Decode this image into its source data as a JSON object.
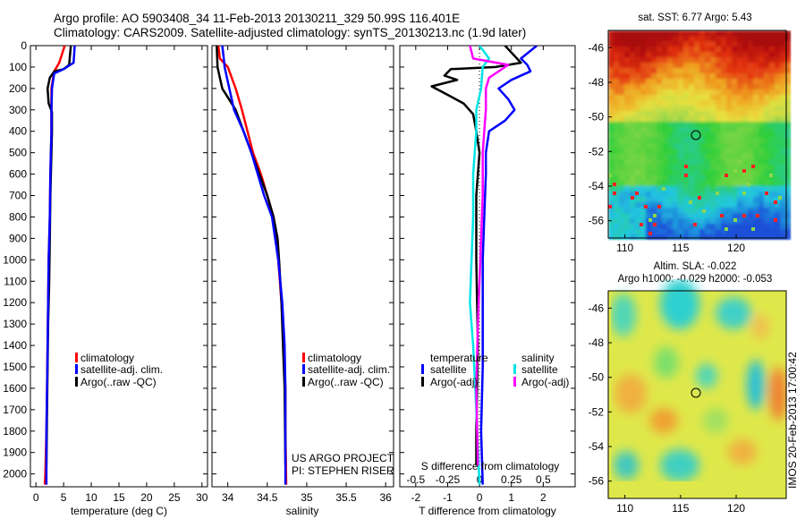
{
  "header": {
    "line1": "Argo profile: AO 5903408_34 11-Feb-2013 20130211_329 50.99S 116.401E",
    "line2": "Climatology: CARS2009. Satellite-adjusted climatology: synTS_20130213.nc (1.9d later)"
  },
  "side_label": "IMOS 20-Feb-2013 17:00:42",
  "project_text": [
    "US ARGO PROJECT",
    "PI: STEPHEN RISER"
  ],
  "colors": {
    "climatology": "#ff0000",
    "satellite": "#0000ff",
    "argo": "#000000",
    "sat_salinity": "#00e5e5",
    "argo_salinity": "#ff00ff"
  },
  "chart_data": [
    {
      "type": "line",
      "xlabel": "temperature (deg C)",
      "xlim": [
        -1,
        31
      ],
      "ylim": [
        2060,
        0
      ],
      "x_ticks": [
        0,
        5,
        10,
        15,
        20,
        25,
        30
      ],
      "x_ticklabels": [
        "0",
        "5",
        "10",
        "15",
        "20",
        "25",
        "30"
      ],
      "y_ticks": [
        0,
        100,
        200,
        300,
        400,
        500,
        600,
        700,
        800,
        900,
        1000,
        1100,
        1200,
        1300,
        1400,
        1500,
        1600,
        1700,
        1800,
        1900,
        2000
      ],
      "legend": {
        "entries": [
          "climatology",
          "satellite-adj. clim.",
          "Argo(..raw -QC)"
        ]
      },
      "series": [
        {
          "name": "climatology",
          "color": "#ff0000",
          "x": [
            5.2,
            4.2,
            3.3,
            2.8,
            2.8,
            2.8,
            2.7,
            2.6,
            2.5,
            2.3,
            2.2,
            2.1,
            2.0,
            1.9,
            1.8,
            1.7,
            1.6
          ],
          "y": [
            0,
            80,
            120,
            200,
            300,
            400,
            500,
            600,
            800,
            1000,
            1200,
            1400,
            1600,
            1800,
            1900,
            2000,
            2050
          ]
        },
        {
          "name": "Argo",
          "color": "#000000",
          "x": [
            6.3,
            6.0,
            5.0,
            3.3,
            2.5,
            2.1,
            2.3,
            2.9,
            2.9,
            2.8,
            2.7,
            2.6,
            2.5,
            2.4,
            2.2,
            2.1,
            2.0,
            1.9
          ],
          "y": [
            0,
            90,
            110,
            120,
            150,
            200,
            270,
            310,
            400,
            500,
            600,
            700,
            900,
            1100,
            1300,
            1500,
            1700,
            1960
          ]
        },
        {
          "name": "satellite-adj. clim.",
          "color": "#0000ff",
          "x": [
            7.0,
            6.8,
            5.0,
            3.3,
            2.9,
            2.8,
            2.8,
            2.7,
            2.6,
            2.5,
            2.3,
            2.2,
            2.1,
            2.0,
            1.9,
            1.9
          ],
          "y": [
            0,
            80,
            110,
            130,
            200,
            300,
            400,
            500,
            600,
            800,
            1000,
            1200,
            1400,
            1600,
            1800,
            2050
          ]
        }
      ]
    },
    {
      "type": "line",
      "xlabel": "salinity",
      "xlim": [
        33.8,
        36.1
      ],
      "ylim": [
        2060,
        0
      ],
      "x_ticks": [
        34,
        34.5,
        35,
        35.5,
        36
      ],
      "x_ticklabels": [
        "34",
        "34.5",
        "35",
        "35.5",
        "36"
      ],
      "legend": {
        "entries": [
          "climatology",
          "satellite-adj. clim.",
          "Argo(..raw -QC)"
        ]
      },
      "series": [
        {
          "name": "climatology",
          "color": "#ff0000",
          "x": [
            33.88,
            33.9,
            34.0,
            34.1,
            34.18,
            34.25,
            34.32,
            34.42,
            34.5,
            34.58,
            34.64,
            34.68,
            34.71,
            34.73,
            34.73,
            34.74
          ],
          "y": [
            0,
            60,
            100,
            200,
            300,
            400,
            500,
            600,
            700,
            800,
            1000,
            1200,
            1400,
            1600,
            1800,
            2050
          ]
        },
        {
          "name": "Argo",
          "color": "#000000",
          "x": [
            33.86,
            33.87,
            33.9,
            33.93,
            34.1,
            34.2,
            34.3,
            34.4,
            34.5,
            34.58,
            34.63,
            34.65,
            34.68,
            34.7,
            34.72,
            34.73
          ],
          "y": [
            0,
            100,
            150,
            200,
            300,
            400,
            500,
            600,
            700,
            800,
            900,
            1000,
            1200,
            1400,
            1600,
            1960
          ]
        },
        {
          "name": "satellite-adj. clim.",
          "color": "#0000ff",
          "x": [
            33.93,
            33.95,
            33.96,
            34.02,
            34.08,
            34.2,
            34.3,
            34.38,
            34.46,
            34.56,
            34.64,
            34.69,
            34.72,
            34.73,
            34.73
          ],
          "y": [
            0,
            60,
            100,
            200,
            300,
            400,
            500,
            600,
            700,
            800,
            1000,
            1200,
            1400,
            1600,
            2050
          ]
        }
      ]
    },
    {
      "type": "line",
      "xlabel": "T difference from climatology",
      "top_axis_label": "S difference from climatology",
      "xlim": [
        -2.5,
        3.0
      ],
      "ylim": [
        2060,
        0
      ],
      "x_ticks": [
        -2,
        -1,
        0,
        1,
        2
      ],
      "x_ticklabels": [
        "-2",
        "-1",
        "0",
        "1",
        "2"
      ],
      "top_ticklabels": [
        "-0.5",
        "-0.25",
        "0",
        "0.25",
        "0.5"
      ],
      "legend": {
        "temperature": {
          "title": "temperature",
          "entries": [
            "satellite",
            "Argo(-adj)"
          ]
        },
        "salinity": {
          "title": "salinity",
          "entries": [
            "satellite",
            "Argo(-adj)"
          ]
        }
      },
      "series": [
        {
          "name": "T satellite",
          "color": "#0000ff",
          "x": [
            1.8,
            1.3,
            1.5,
            1.6,
            1.0,
            0.6,
            0.9,
            1.1,
            0.8,
            0.3,
            0.2,
            0.2,
            0.15,
            0.1,
            0.1,
            0.1,
            0.05,
            0.1
          ],
          "y": [
            0,
            60,
            90,
            120,
            160,
            200,
            250,
            300,
            350,
            400,
            500,
            600,
            800,
            1000,
            1200,
            1500,
            1800,
            2050
          ]
        },
        {
          "name": "T Argo(-adj)",
          "color": "#000000",
          "x": [
            0.8,
            1.3,
            0.5,
            -0.9,
            -1.1,
            -0.7,
            -1.5,
            -1.0,
            -0.5,
            -0.2,
            -0.1,
            0.0,
            -0.1,
            -0.1,
            -0.05,
            -0.1,
            -0.1
          ],
          "y": [
            0,
            80,
            100,
            110,
            140,
            160,
            190,
            230,
            270,
            320,
            400,
            500,
            700,
            1000,
            1400,
            1800,
            1960
          ]
        },
        {
          "name": "S satellite",
          "color": "#00e5e5",
          "x": [
            0.0,
            0.3,
            0.1,
            0.05,
            -0.1,
            -0.1,
            -0.2,
            -0.2,
            -0.25,
            -0.3,
            -0.2,
            -0.1,
            0.0
          ],
          "y": [
            0,
            60,
            100,
            200,
            300,
            400,
            600,
            800,
            1000,
            1200,
            1400,
            1700,
            2050
          ]
        },
        {
          "name": "S Argo(-adj)",
          "color": "#ff00ff",
          "x": [
            -0.3,
            -0.2,
            0.9,
            0.3,
            0.2,
            0.2,
            0.15,
            0.1,
            0.1,
            0.05,
            0.0,
            -0.05,
            -0.1,
            -0.05
          ],
          "y": [
            0,
            60,
            90,
            150,
            200,
            300,
            400,
            500,
            700,
            900,
            1100,
            1300,
            1600,
            1960
          ]
        }
      ]
    },
    {
      "type": "heatmap",
      "title": "sat. SST: 6.77  Argo: 5.43",
      "xlim": [
        108.5,
        124.5
      ],
      "ylim": [
        -57,
        -45
      ],
      "x_ticks": [
        110,
        115,
        120
      ],
      "y_ticks": [
        -46,
        -48,
        -50,
        -52,
        -54,
        -56
      ],
      "marker": {
        "lon": 116.401,
        "lat": -50.99
      }
    },
    {
      "type": "heatmap",
      "title": "Altim. SLA: -0.022",
      "subtitle": "Argo h1000: -0.029  h2000: -0.053",
      "xlim": [
        108.5,
        124.5
      ],
      "ylim": [
        -57,
        -45
      ],
      "x_ticks": [
        110,
        115,
        120
      ],
      "y_ticks": [
        -46,
        -48,
        -50,
        -52,
        -54,
        -56
      ],
      "marker": {
        "lon": 116.401,
        "lat": -50.99
      }
    }
  ]
}
